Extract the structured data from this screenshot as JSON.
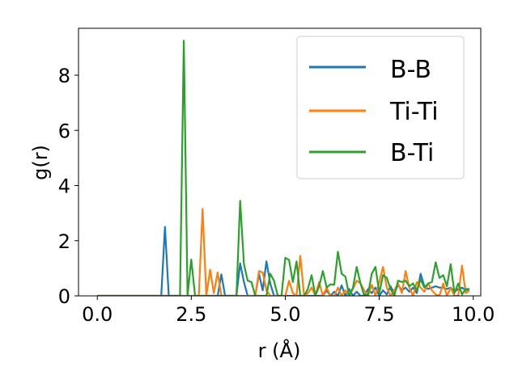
{
  "chart_data": {
    "type": "line",
    "xlabel": "r (Å)",
    "ylabel": "g(r)",
    "xlim": [
      -0.5,
      10.2
    ],
    "ylim": [
      0,
      9.7
    ],
    "xticks": [
      0.0,
      2.5,
      5.0,
      7.5,
      10.0
    ],
    "xtick_labels": [
      "0.0",
      "2.5",
      "5.0",
      "7.5",
      "10.0"
    ],
    "yticks": [
      0,
      2,
      4,
      6,
      8
    ],
    "ytick_labels": [
      "0",
      "2",
      "4",
      "6",
      "8"
    ],
    "grid": false,
    "legend": "top-right",
    "series": [
      {
        "name": "B-B",
        "color": "#1f77b4",
        "x": [
          0.0,
          1.7,
          1.8,
          1.9,
          2.0,
          3.2,
          3.3,
          3.4,
          3.7,
          3.8,
          3.9,
          4.0,
          4.2,
          4.3,
          4.4,
          4.5,
          4.6,
          4.7,
          4.8,
          4.9,
          5.0,
          6.0,
          6.1,
          6.2,
          6.3,
          6.4,
          6.5,
          6.6,
          6.7,
          6.8,
          6.9,
          7.0,
          7.1,
          7.2,
          7.3,
          7.4,
          7.5,
          7.6,
          7.7,
          7.8,
          7.9,
          8.0,
          8.1,
          8.2,
          8.3,
          8.4,
          8.5,
          8.6,
          8.7,
          8.8,
          8.9,
          9.0,
          9.1,
          9.2,
          9.3,
          9.4,
          9.5,
          9.6,
          9.7,
          9.8,
          9.9
        ],
        "values": [
          0.0,
          0.0,
          2.5,
          0.0,
          0.0,
          0.0,
          0.78,
          0.0,
          0.0,
          1.18,
          0.5,
          0.0,
          0.0,
          0.8,
          0.2,
          1.25,
          0.45,
          0.0,
          0.0,
          0.0,
          0.0,
          0.0,
          0.2,
          0.0,
          0.15,
          0.0,
          0.38,
          0.0,
          0.25,
          0.0,
          0.15,
          0.0,
          0.0,
          0.25,
          0.1,
          0.3,
          0.0,
          0.2,
          0.05,
          0.35,
          0.1,
          0.4,
          0.2,
          0.3,
          0.15,
          0.3,
          0.1,
          0.8,
          0.35,
          0.25,
          0.3,
          0.35,
          0.3,
          0.3,
          0.25,
          0.3,
          0.15,
          0.25,
          0.3,
          0.2,
          0.25
        ]
      },
      {
        "name": "Ti-Ti",
        "color": "#ff7f0e",
        "x": [
          0.0,
          2.7,
          2.8,
          2.9,
          3.0,
          3.1,
          3.2,
          3.3,
          4.2,
          4.3,
          4.4,
          4.5,
          4.6,
          5.0,
          5.1,
          5.2,
          5.3,
          5.4,
          5.5,
          5.6,
          5.7,
          5.8,
          5.9,
          6.0,
          6.1,
          6.2,
          6.3,
          6.4,
          6.5,
          6.6,
          6.7,
          6.8,
          6.9,
          7.0,
          7.1,
          7.2,
          7.3,
          7.4,
          7.5,
          7.6,
          7.7,
          7.8,
          7.9,
          8.0,
          8.1,
          8.2,
          8.3,
          8.4,
          8.5,
          8.6,
          8.7,
          8.8,
          8.9,
          9.0,
          9.1,
          9.2,
          9.3,
          9.4,
          9.5,
          9.6,
          9.7,
          9.8,
          9.9
        ],
        "values": [
          0.0,
          0.0,
          3.15,
          0.0,
          0.95,
          0.1,
          0.85,
          0.0,
          0.0,
          0.9,
          0.85,
          0.2,
          0.0,
          0.0,
          0.55,
          0.1,
          0.0,
          1.45,
          0.0,
          0.1,
          0.3,
          0.0,
          0.5,
          0.0,
          0.3,
          0.0,
          0.0,
          0.3,
          0.0,
          0.2,
          0.0,
          0.25,
          0.55,
          0.45,
          0.2,
          0.0,
          0.4,
          0.0,
          0.5,
          1.05,
          0.3,
          0.0,
          0.2,
          0.45,
          0.1,
          0.9,
          0.3,
          0.0,
          0.5,
          0.3,
          0.15,
          0.45,
          0.2,
          0.05,
          0.0,
          0.45,
          0.0,
          0.3,
          0.0,
          0.0,
          1.1,
          0.1,
          0.2
        ]
      },
      {
        "name": "B-Ti",
        "color": "#2ca02c",
        "x": [
          0.0,
          2.2,
          2.3,
          2.4,
          2.5,
          2.6,
          3.7,
          3.8,
          3.9,
          4.0,
          4.1,
          4.2,
          4.3,
          4.5,
          4.6,
          4.7,
          4.8,
          4.9,
          5.0,
          5.1,
          5.2,
          5.3,
          5.4,
          5.5,
          5.6,
          5.7,
          5.8,
          5.9,
          6.0,
          6.1,
          6.2,
          6.3,
          6.4,
          6.5,
          6.6,
          6.7,
          6.8,
          6.9,
          7.0,
          7.1,
          7.2,
          7.3,
          7.4,
          7.5,
          7.6,
          7.7,
          7.8,
          7.9,
          8.0,
          8.1,
          8.2,
          8.3,
          8.4,
          8.5,
          8.6,
          8.7,
          8.8,
          8.9,
          9.0,
          9.1,
          9.2,
          9.3,
          9.4,
          9.5,
          9.6,
          9.7,
          9.8,
          9.9
        ],
        "values": [
          0.0,
          0.0,
          9.25,
          0.0,
          1.32,
          0.0,
          0.0,
          3.45,
          1.15,
          0.55,
          0.5,
          0.0,
          0.0,
          0.0,
          0.8,
          0.55,
          0.0,
          0.0,
          1.38,
          1.3,
          0.5,
          1.25,
          0.0,
          0.0,
          0.25,
          0.75,
          0.0,
          0.35,
          0.9,
          0.3,
          0.42,
          0.4,
          1.6,
          0.8,
          0.7,
          0.0,
          0.3,
          1.05,
          0.45,
          0.0,
          0.05,
          0.8,
          1.05,
          0.1,
          0.75,
          0.65,
          0.25,
          0.0,
          0.55,
          0.5,
          0.55,
          0.35,
          0.45,
          0.2,
          0.6,
          0.3,
          0.45,
          0.5,
          1.22,
          0.65,
          0.75,
          0.35,
          1.15,
          0.1,
          0.45,
          0.05,
          0.25,
          0.25
        ]
      }
    ]
  }
}
